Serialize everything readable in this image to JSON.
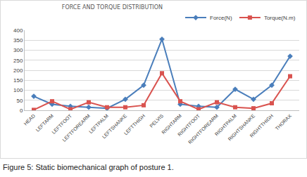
{
  "chart_data": {
    "type": "line",
    "title": "FORCE AND TORQUE DISTRIBUTION",
    "caption": "Figure 5: Static biomechanical graph of posture 1.",
    "categories": [
      "HEAD",
      "LEFTARM",
      "LEFTFOOT",
      "LEFTFOREARM",
      "LEFTPALM",
      "LEFTSHANKE",
      "LEFTTHIGH",
      "PELVIS",
      "RIGHTARM",
      "RIGHTFOOT",
      "RIGHTFOREARM",
      "RIGHTPALM",
      "RIGHTSHANKE",
      "RIGHTTHIGH",
      "THORAX"
    ],
    "series": [
      {
        "name": "Force(N)",
        "color": "#4a7ebb",
        "marker": "diamond",
        "values": [
          70,
          30,
          20,
          15,
          10,
          55,
          125,
          355,
          30,
          20,
          15,
          105,
          55,
          125,
          270
        ]
      },
      {
        "name": "Torque(N.m)",
        "color": "#d9534f",
        "marker": "square",
        "values": [
          2,
          45,
          5,
          40,
          15,
          15,
          25,
          185,
          45,
          5,
          40,
          15,
          10,
          35,
          170
        ]
      }
    ],
    "ylim": [
      0,
      400
    ],
    "yticks": [
      0,
      50,
      100,
      150,
      200,
      250,
      300,
      350,
      400
    ],
    "grid": true,
    "legend": "top-right"
  }
}
